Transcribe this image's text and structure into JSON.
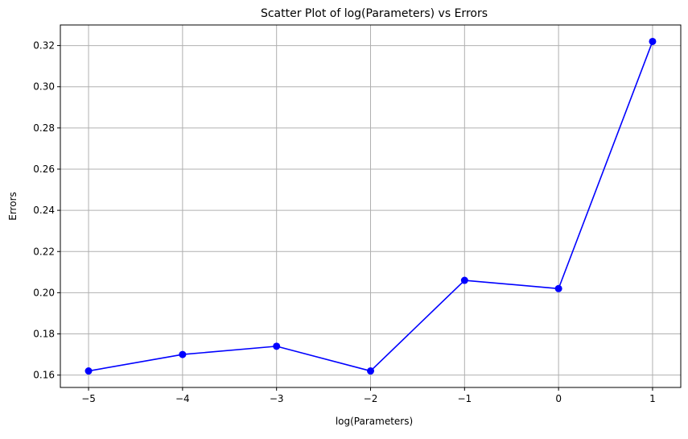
{
  "chart_data": {
    "type": "line",
    "title": "Scatter Plot of log(Parameters) vs Errors",
    "xlabel": "log(Parameters)",
    "ylabel": "Errors",
    "x": [
      -5,
      -4,
      -3,
      -2,
      -1,
      0,
      1
    ],
    "y": [
      0.162,
      0.17,
      0.174,
      0.162,
      0.206,
      0.202,
      0.322
    ],
    "xlim": [
      -5.3,
      1.3
    ],
    "ylim": [
      0.154,
      0.33
    ],
    "x_ticks": [
      -5,
      -4,
      -3,
      -2,
      -1,
      0,
      1
    ],
    "x_tick_labels": [
      "−5",
      "−4",
      "−3",
      "−2",
      "−1",
      "0",
      "1"
    ],
    "y_ticks": [
      0.16,
      0.18,
      0.2,
      0.22,
      0.24,
      0.26,
      0.28,
      0.3,
      0.32
    ],
    "y_tick_labels": [
      "0.16",
      "0.18",
      "0.20",
      "0.22",
      "0.24",
      "0.26",
      "0.28",
      "0.30",
      "0.32"
    ],
    "grid": true,
    "line_color": "#0000ff",
    "marker": "circle",
    "grid_color": "#b0b0b0"
  }
}
